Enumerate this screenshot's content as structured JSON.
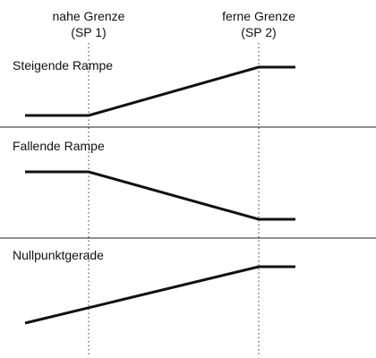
{
  "header": {
    "near_limit_line1": "nahe Grenze",
    "near_limit_line2": "(SP 1)",
    "far_limit_line1": "ferne Grenze",
    "far_limit_line2": "(SP 2)"
  },
  "panels": [
    {
      "label": "Steigende Rampe"
    },
    {
      "label": "Fallende Rampe"
    },
    {
      "label": "Nullpunktgerade"
    }
  ],
  "colors": {
    "line": "#111111",
    "separator": "#222222",
    "guide": "#333333"
  }
}
